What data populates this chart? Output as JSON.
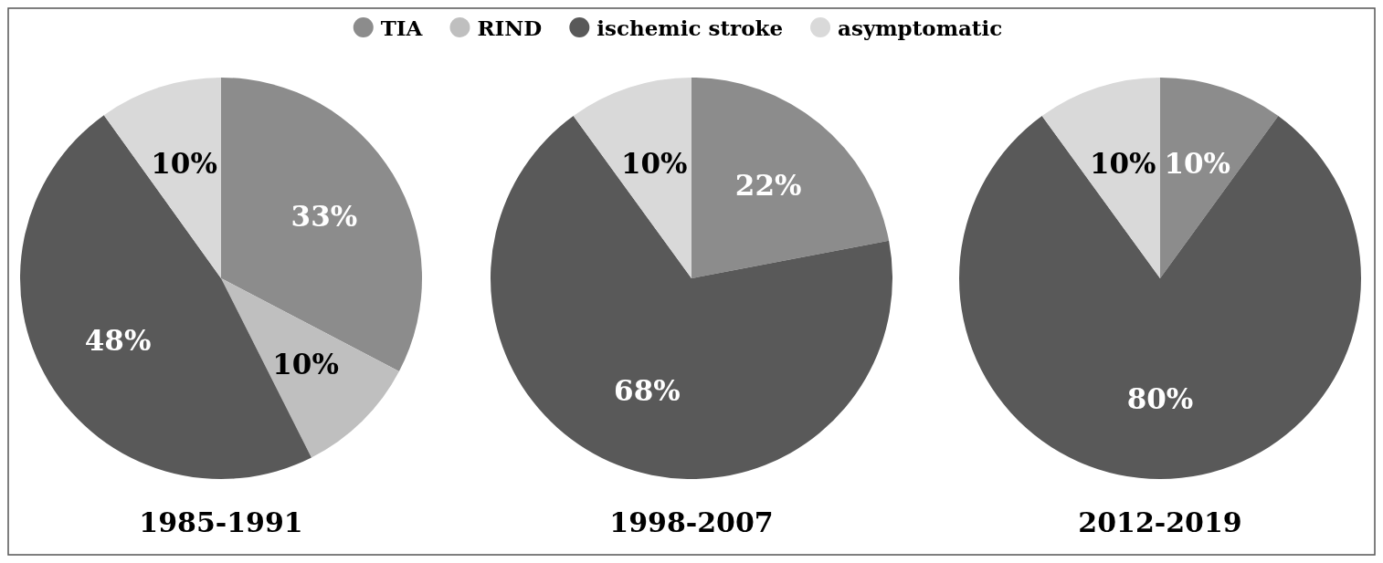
{
  "chart_data": [
    {
      "type": "pie",
      "title": "1985-1991",
      "categories": [
        "TIA",
        "RIND",
        "ischemic stroke",
        "asymptomatic"
      ],
      "values": [
        33,
        10,
        48,
        10
      ],
      "colors": [
        "#8c8c8c",
        "#bfbfbf",
        "#595959",
        "#d9d9d9"
      ],
      "value_labels": [
        "33%",
        "10%",
        "48%",
        "10%"
      ],
      "legend": "top"
    },
    {
      "type": "pie",
      "title": "1998-2007",
      "categories": [
        null,
        null,
        null
      ],
      "values": [
        22,
        68,
        10
      ],
      "colors": [
        "#8c8c8c",
        "#595959",
        "#d9d9d9"
      ],
      "value_labels": [
        "22%",
        "68%",
        "10%"
      ]
    },
    {
      "type": "pie",
      "title": "2012-2019",
      "categories": [
        null,
        null,
        null
      ],
      "values": [
        10,
        80,
        10
      ],
      "colors": [
        "#8c8c8c",
        "#595959",
        "#d9d9d9"
      ],
      "value_labels": [
        "10%",
        "80%",
        "10%"
      ]
    }
  ]
}
